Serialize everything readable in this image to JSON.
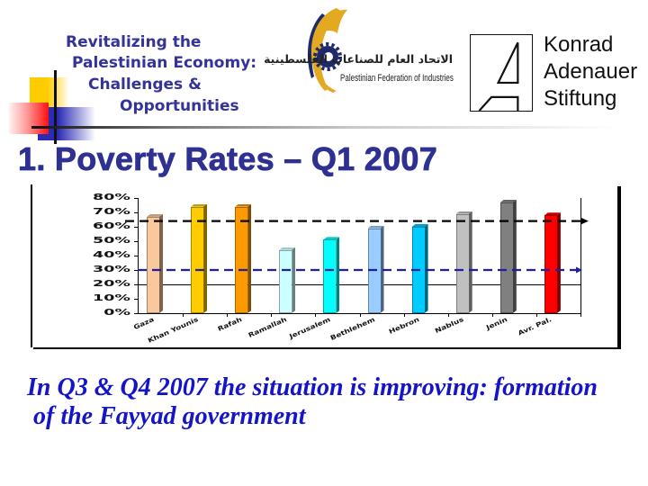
{
  "header": {
    "title_lines": [
      "Revitalizing the",
      "Palestinian Economy:",
      "Challenges &",
      "Opportunities"
    ]
  },
  "logos": {
    "pfi": {
      "arabic": "الاتحاد العام للصناعات الفلسطينية",
      "english": "Palestinian Federation of Industries"
    },
    "kas": {
      "lines": [
        "Konrad",
        "Adenauer",
        "Stiftung"
      ]
    }
  },
  "slide": {
    "title": "1. Poverty Rates – Q1 2007",
    "footnote_lines": [
      "In Q3 & Q4 2007 the situation is improving: formation",
      "of the Fayyad government"
    ]
  },
  "colors": {
    "heading": "#33339A",
    "title": "#2E3192",
    "footnote": "#1414C8",
    "pfi_gold": "#E3A921",
    "pfi_navy": "#1E2A6B"
  },
  "chart_data": {
    "type": "bar",
    "title": "",
    "xlabel": "",
    "ylabel": "",
    "categories": [
      "Gaza",
      "Khan Younis",
      "Rafah",
      "Ramallah",
      "Jerusalem",
      "Bethlehem",
      "Hebron",
      "Nablus",
      "Jenin",
      "Avr. Pal."
    ],
    "values": [
      67,
      74,
      74,
      44,
      51,
      59,
      60,
      69,
      77,
      68
    ],
    "colors": [
      "#F9C89C",
      "#FFCC00",
      "#FF9900",
      "#CCFFFF",
      "#00FFFF",
      "#99CCFF",
      "#00CCFF",
      "#C0C0C0",
      "#808080",
      "#FF0000"
    ],
    "ylim": [
      0,
      80
    ],
    "yticks": [
      "0%",
      "10%",
      "20%",
      "30%",
      "40%",
      "50%",
      "60%",
      "70%",
      "80%"
    ],
    "grid": false,
    "legend": "none",
    "reference_lines": [
      {
        "value": 64,
        "style": "dashed",
        "color": "#000000",
        "arrow": true
      },
      {
        "value": 30,
        "style": "dashed",
        "color": "#1F1FA0",
        "arrow": true
      },
      {
        "value": 20,
        "style": "solid",
        "color": "#000000",
        "arrow": false
      }
    ]
  }
}
